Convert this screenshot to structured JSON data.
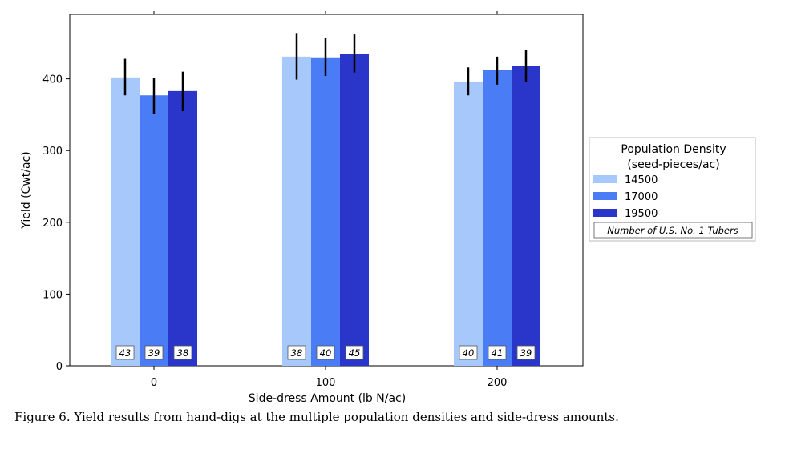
{
  "chart_data": {
    "type": "bar",
    "categories": [
      "0",
      "100",
      "200"
    ],
    "xlabel": "Side-dress Amount (lb N/ac)",
    "ylabel": "Yield (Cwt/ac)",
    "ylim": [
      0,
      490
    ],
    "yticks": [
      0,
      100,
      200,
      300,
      400
    ],
    "legend": {
      "title": "Population Density\n(seed-pieces/ac)",
      "placement": "right",
      "note": "Number of U.S. No. 1 Tubers"
    },
    "series": [
      {
        "name": "14500",
        "color": "#a6c8fb",
        "values": [
          402,
          431,
          396
        ],
        "err_low": [
          377,
          399,
          377
        ],
        "err_high": [
          428,
          464,
          416
        ],
        "counts": [
          "43",
          "38",
          "40"
        ]
      },
      {
        "name": "17000",
        "color": "#4a7cf5",
        "values": [
          377,
          430,
          412
        ],
        "err_low": [
          351,
          404,
          392
        ],
        "err_high": [
          401,
          457,
          431
        ],
        "counts": [
          "39",
          "40",
          "41"
        ]
      },
      {
        "name": "19500",
        "color": "#2a35c9",
        "values": [
          383,
          435,
          418
        ],
        "err_low": [
          355,
          409,
          396
        ],
        "err_high": [
          410,
          462,
          440
        ],
        "counts": [
          "38",
          "45",
          "39"
        ]
      }
    ]
  },
  "caption": "Figure 6. Yield results from hand-digs at the multiple population densities and side-dress amounts."
}
